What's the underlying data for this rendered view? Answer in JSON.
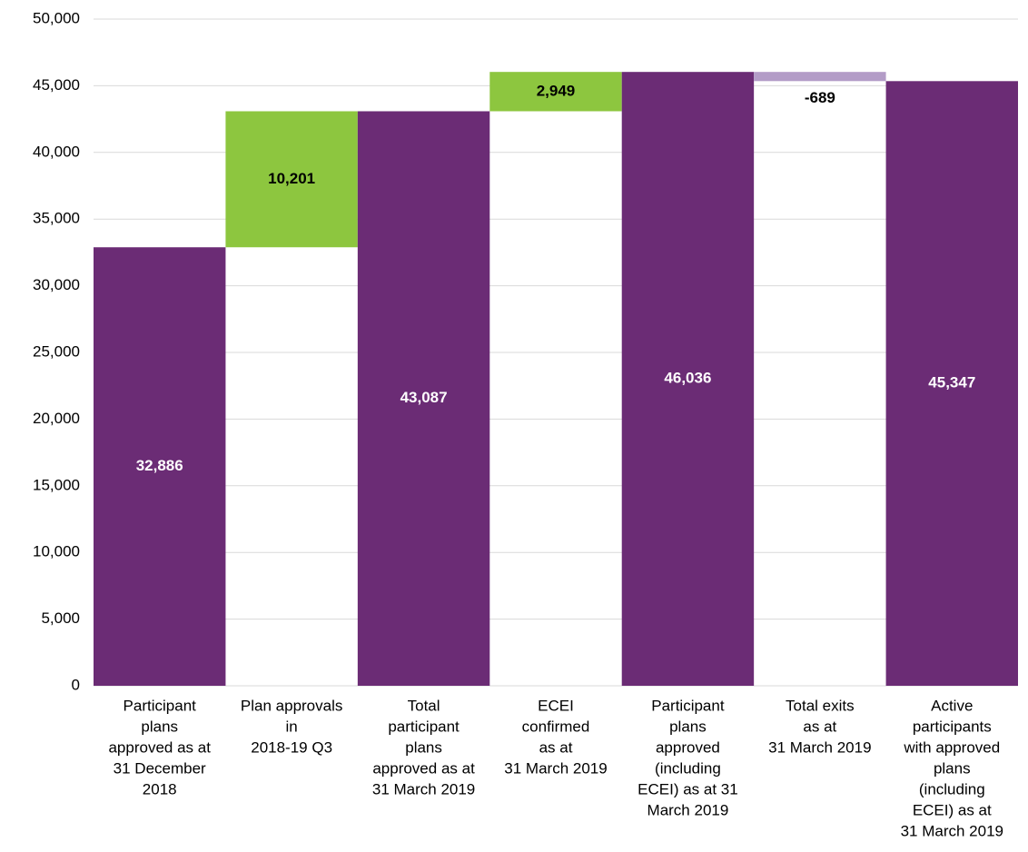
{
  "chart_data": {
    "type": "waterfall",
    "categories": [
      [
        "Participant",
        "plans",
        "approved as at",
        "31 December",
        "2018"
      ],
      [
        "Plan approvals",
        "in",
        "2018-19 Q3"
      ],
      [
        "Total",
        "participant",
        "plans",
        "approved as at",
        "31 March 2019"
      ],
      [
        "ECEI",
        "confirmed",
        "as at",
        "31 March 2019"
      ],
      [
        "Participant",
        "plans",
        "approved",
        "(including",
        "ECEI) as at 31",
        "March 2019"
      ],
      [
        "Total exits",
        "as at",
        "31 March 2019"
      ],
      [
        "Active",
        "participants",
        "with approved",
        "plans",
        "(including",
        "ECEI) as at",
        "31 March 2019"
      ]
    ],
    "values": [
      32886,
      10201,
      43087,
      2949,
      46036,
      -689,
      45347
    ],
    "value_labels": [
      "32,886",
      "10,201",
      "43,087",
      "2,949",
      "46,036",
      "-689",
      "45,347"
    ],
    "measures": [
      "total",
      "relative",
      "total",
      "relative",
      "total",
      "relative",
      "total"
    ],
    "colors": {
      "total": "#6b2c75",
      "increase": "#8dc63f",
      "decrease": "#b39cc7"
    },
    "ylim": [
      0,
      50000
    ],
    "yticks": [
      0,
      {
        "value": 5000,
        "label": "5,000"
      },
      {
        "value": 10000,
        "label": "10,000"
      },
      {
        "value": 15000,
        "label": "15,000"
      },
      {
        "value": 20000,
        "label": "20,000"
      },
      {
        "value": 25000,
        "label": "25,000"
      },
      {
        "value": 30000,
        "label": "30,000"
      },
      {
        "value": 35000,
        "label": "35,000"
      },
      {
        "value": 40000,
        "label": "40,000"
      },
      {
        "value": 45000,
        "label": "45,000"
      },
      {
        "value": 50000,
        "label": "50,000"
      }
    ],
    "grid": true
  }
}
